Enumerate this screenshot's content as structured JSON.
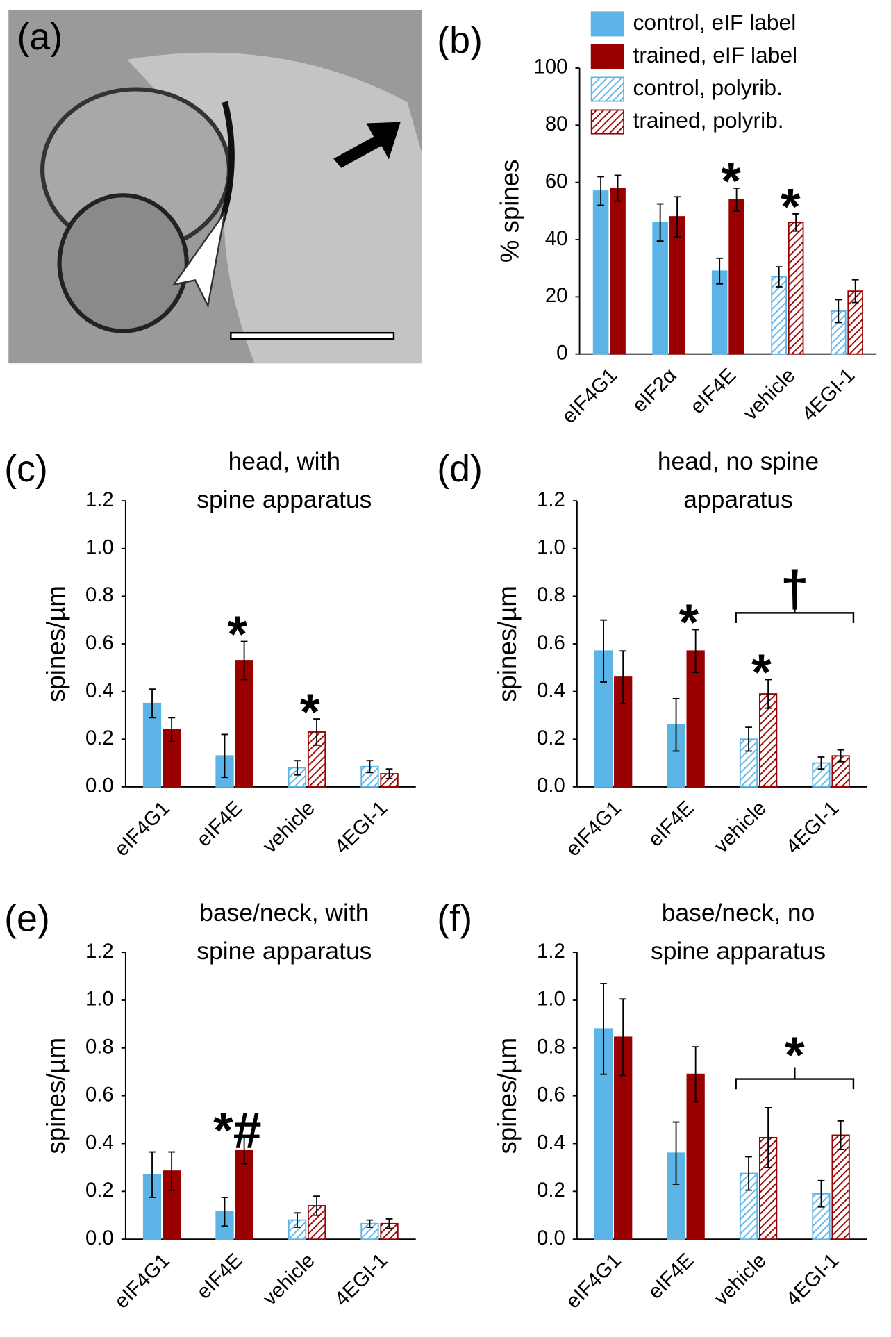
{
  "chart_data": [
    {
      "type": "image",
      "panel_label": "(a)"
    },
    {
      "type": "bar",
      "panel_label": "(b)",
      "ylabel": "% spines",
      "categories": [
        "eIF4G1",
        "eIF2α",
        "eIF4E",
        "vehicle",
        "4EGI-1"
      ],
      "ylim": [
        0,
        100
      ],
      "yticks": [
        0,
        20,
        40,
        60,
        80,
        100
      ],
      "legend": "top-right",
      "series": [
        {
          "name": "control, eIF label",
          "color": "#5bb4e5",
          "hatch": false,
          "values": [
            57,
            46,
            29,
            null,
            null
          ],
          "errors": [
            5,
            6.5,
            4.5,
            null,
            null
          ]
        },
        {
          "name": "trained, eIF label",
          "color": "#990000",
          "hatch": false,
          "values": [
            58,
            48,
            54,
            null,
            null
          ],
          "errors": [
            4.5,
            7,
            4,
            null,
            null
          ]
        },
        {
          "name": "control, polyrib.",
          "color": "#5bb4e5",
          "hatch": true,
          "values": [
            null,
            null,
            null,
            27,
            15
          ],
          "errors": [
            null,
            null,
            null,
            3.5,
            4
          ]
        },
        {
          "name": "trained, polyrib.",
          "color": "#990000",
          "hatch": true,
          "values": [
            null,
            null,
            null,
            46,
            22
          ],
          "errors": [
            null,
            null,
            null,
            3,
            4
          ]
        }
      ],
      "annotations": [
        {
          "text": "*",
          "category": 2,
          "series": 1
        },
        {
          "text": "*",
          "category": 3,
          "series": 3
        }
      ]
    },
    {
      "type": "bar",
      "panel_label": "(c)",
      "title": [
        "head, with",
        "spine apparatus"
      ],
      "ylabel": "spines/µm",
      "categories": [
        "eIF4G1",
        "eIF4E",
        "vehicle",
        "4EGI-1"
      ],
      "ylim": [
        0,
        1.2
      ],
      "yticks": [
        {
          "value": 0,
          "label": "0.0"
        },
        0.2,
        0.4,
        0.6,
        0.8,
        {
          "value": 1,
          "label": "1.0"
        },
        1.2
      ],
      "series": [
        {
          "color": "#5bb4e5",
          "hatch": false,
          "values": [
            0.35,
            0.13,
            null,
            null
          ],
          "errors": [
            0.06,
            0.09,
            null,
            null
          ]
        },
        {
          "color": "#990000",
          "hatch": false,
          "values": [
            0.24,
            0.53,
            null,
            null
          ],
          "errors": [
            0.05,
            0.08,
            null,
            null
          ]
        },
        {
          "color": "#5bb4e5",
          "hatch": true,
          "values": [
            null,
            null,
            0.08,
            0.085
          ],
          "errors": [
            null,
            null,
            0.03,
            0.025
          ]
        },
        {
          "color": "#990000",
          "hatch": true,
          "values": [
            null,
            null,
            0.23,
            0.055
          ],
          "errors": [
            null,
            null,
            0.055,
            0.02
          ]
        }
      ],
      "annotations": [
        {
          "text": "*",
          "category": 1,
          "series": 1
        },
        {
          "text": "*",
          "category": 2,
          "series": 3
        }
      ]
    },
    {
      "type": "bar",
      "panel_label": "(d)",
      "title": [
        "head, no spine",
        "apparatus"
      ],
      "ylabel": "spines/µm",
      "categories": [
        "eIF4G1",
        "eIF4E",
        "vehicle",
        "4EGI-1"
      ],
      "ylim": [
        0,
        1.2
      ],
      "yticks": [
        {
          "value": 0,
          "label": "0.0"
        },
        0.2,
        0.4,
        0.6,
        0.8,
        {
          "value": 1,
          "label": "1.0"
        },
        1.2
      ],
      "series": [
        {
          "color": "#5bb4e5",
          "hatch": false,
          "values": [
            0.57,
            0.26,
            null,
            null
          ],
          "errors": [
            0.13,
            0.11,
            null,
            null
          ]
        },
        {
          "color": "#990000",
          "hatch": false,
          "values": [
            0.46,
            0.57,
            null,
            null
          ],
          "errors": [
            0.11,
            0.09,
            null,
            null
          ]
        },
        {
          "color": "#5bb4e5",
          "hatch": true,
          "values": [
            null,
            null,
            0.2,
            0.1
          ],
          "errors": [
            null,
            null,
            0.05,
            0.025
          ]
        },
        {
          "color": "#990000",
          "hatch": true,
          "values": [
            null,
            null,
            0.39,
            0.13
          ],
          "errors": [
            null,
            null,
            0.06,
            0.025
          ]
        }
      ],
      "annotations": [
        {
          "text": "*",
          "category": 1,
          "series": 1
        },
        {
          "text": "*",
          "category": 2,
          "series": 3
        }
      ],
      "brackets": [
        {
          "text": "†",
          "span": [
            2,
            3
          ],
          "y": 0.73
        }
      ]
    },
    {
      "type": "bar",
      "panel_label": "(e)",
      "title": [
        "base/neck, with",
        "spine apparatus"
      ],
      "ylabel": "spines/µm",
      "categories": [
        "eIF4G1",
        "eIF4E",
        "vehicle",
        "4EGI-1"
      ],
      "ylim": [
        0,
        1.2
      ],
      "yticks": [
        {
          "value": 0,
          "label": "0.0"
        },
        0.2,
        0.4,
        0.6,
        0.8,
        {
          "value": 1,
          "label": "1.0"
        },
        1.2
      ],
      "series": [
        {
          "color": "#5bb4e5",
          "hatch": false,
          "values": [
            0.27,
            0.115,
            null,
            null
          ],
          "errors": [
            0.095,
            0.06,
            null,
            null
          ]
        },
        {
          "color": "#990000",
          "hatch": false,
          "values": [
            0.285,
            0.37,
            null,
            null
          ],
          "errors": [
            0.08,
            0.055,
            null,
            null
          ]
        },
        {
          "color": "#5bb4e5",
          "hatch": true,
          "values": [
            null,
            null,
            0.08,
            0.065
          ],
          "errors": [
            null,
            null,
            0.03,
            0.015
          ]
        },
        {
          "color": "#990000",
          "hatch": true,
          "values": [
            null,
            null,
            0.14,
            0.065
          ],
          "errors": [
            null,
            null,
            0.04,
            0.02
          ]
        }
      ],
      "annotations": [
        {
          "text": "*#",
          "category": 1,
          "series": 1
        }
      ]
    },
    {
      "type": "bar",
      "panel_label": "(f)",
      "title": [
        "base/neck, no",
        "spine apparatus"
      ],
      "ylabel": "spines/µm",
      "categories": [
        "eIF4G1",
        "eIF4E",
        "vehicle",
        "4EGI-1"
      ],
      "ylim": [
        0,
        1.2
      ],
      "yticks": [
        {
          "value": 0,
          "label": "0.0"
        },
        0.2,
        0.4,
        0.6,
        0.8,
        {
          "value": 1,
          "label": "1.0"
        },
        1.2
      ],
      "series": [
        {
          "color": "#5bb4e5",
          "hatch": false,
          "values": [
            0.88,
            0.36,
            null,
            null
          ],
          "errors": [
            0.19,
            0.13,
            null,
            null
          ]
        },
        {
          "color": "#990000",
          "hatch": false,
          "values": [
            0.845,
            0.69,
            null,
            null
          ],
          "errors": [
            0.16,
            0.115,
            null,
            null
          ]
        },
        {
          "color": "#5bb4e5",
          "hatch": true,
          "values": [
            null,
            null,
            0.275,
            0.19
          ],
          "errors": [
            null,
            null,
            0.07,
            0.055
          ]
        },
        {
          "color": "#990000",
          "hatch": true,
          "values": [
            null,
            null,
            0.425,
            0.435
          ],
          "errors": [
            null,
            null,
            0.125,
            0.06
          ]
        }
      ],
      "brackets": [
        {
          "text": "*",
          "span": [
            2,
            3
          ],
          "y": 0.67
        }
      ]
    }
  ]
}
